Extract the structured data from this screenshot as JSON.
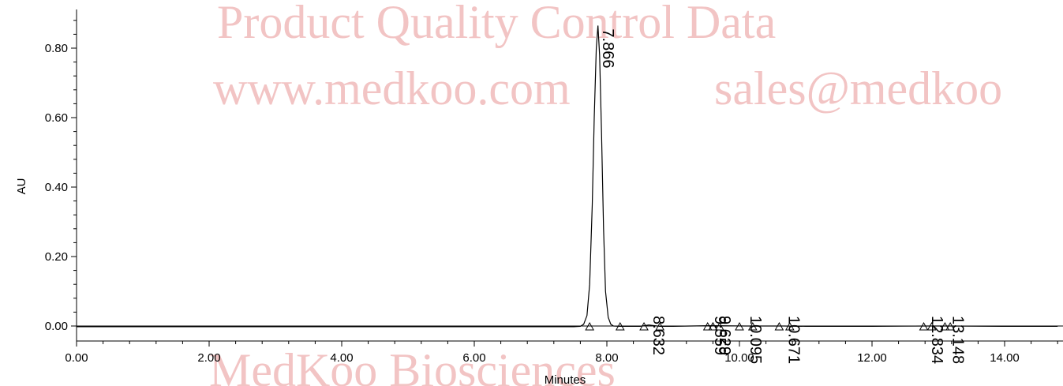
{
  "watermark": {
    "line1": "Product Quality Control Data",
    "line2_left": "www.medkoo.com",
    "line2_right": "sales@medkoo",
    "footer": "MedKoo Biosciences"
  },
  "chart_data": {
    "type": "line",
    "xlabel": "Minutes",
    "ylabel": "AU",
    "xlim": [
      0.0,
      14.8
    ],
    "ylim": [
      -0.045,
      0.91
    ],
    "x_ticks": [
      "0.00",
      "2.00",
      "4.00",
      "6.00",
      "8.00",
      "10.00",
      "12.00",
      "14.00"
    ],
    "x_tick_values": [
      0,
      2,
      4,
      6,
      8,
      10,
      12,
      14
    ],
    "y_ticks": [
      "0.00",
      "0.20",
      "0.40",
      "0.60",
      "0.80"
    ],
    "y_tick_values": [
      0.0,
      0.2,
      0.4,
      0.6,
      0.8
    ],
    "series": [
      {
        "x": [
          0.0,
          1.0,
          2.0,
          3.0,
          4.0,
          5.0,
          6.0,
          7.0,
          7.5,
          7.6,
          7.65,
          7.7,
          7.74,
          7.78,
          7.81,
          7.84,
          7.866,
          7.89,
          7.92,
          7.95,
          7.98,
          8.02,
          8.06,
          8.1,
          8.2,
          8.5,
          8.632,
          8.8,
          9.0,
          9.559,
          9.629,
          10.095,
          10.671,
          11.0,
          12.0,
          12.834,
          13.148,
          14.0,
          14.8
        ],
        "y": [
          -0.002,
          -0.002,
          -0.002,
          -0.002,
          -0.002,
          -0.002,
          -0.002,
          -0.002,
          -0.002,
          -0.001,
          0.005,
          0.03,
          0.12,
          0.35,
          0.6,
          0.8,
          0.865,
          0.78,
          0.55,
          0.28,
          0.1,
          0.025,
          0.005,
          0.0,
          -0.001,
          -0.001,
          0.003,
          -0.001,
          -0.001,
          0.001,
          0.001,
          0.0,
          0.0,
          -0.001,
          -0.001,
          0.0,
          0.0,
          -0.001,
          -0.001
        ]
      }
    ],
    "peaks": [
      {
        "label": "7.866",
        "rt": 7.866,
        "height": 0.865,
        "start": 7.74,
        "end": 8.2
      },
      {
        "label": "8.632",
        "rt": 8.632,
        "height": 0.003,
        "start": 8.56,
        "end": 8.8
      },
      {
        "label": "9.559",
        "rt": 9.559,
        "height": 0.001,
        "start": 9.52,
        "end": 9.6
      },
      {
        "label": "9.629",
        "rt": 9.629,
        "height": 0.001,
        "start": 9.6,
        "end": 9.7
      },
      {
        "label": "10.095",
        "rt": 10.095,
        "height": 0.0,
        "start": 10.0,
        "end": 10.2
      },
      {
        "label": "10.671",
        "rt": 10.671,
        "height": 0.0,
        "start": 10.6,
        "end": 10.76
      },
      {
        "label": "12.834",
        "rt": 12.834,
        "height": 0.0,
        "start": 12.78,
        "end": 12.9
      },
      {
        "label": "13.148",
        "rt": 13.148,
        "height": 0.0,
        "start": 13.1,
        "end": 13.18
      }
    ]
  }
}
